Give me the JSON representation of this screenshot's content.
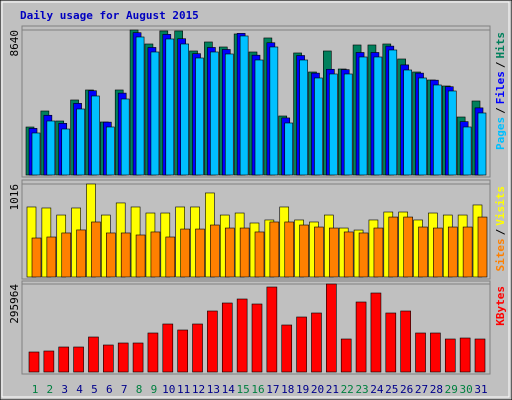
{
  "title": "Daily usage for August 2015",
  "legend_separator": "/",
  "x_label_colors": [
    "#008040",
    "#008040",
    "#00008B",
    "#00008B",
    "#00008B",
    "#00008B",
    "#00008B",
    "#008040",
    "#008040",
    "#00008B",
    "#00008B",
    "#00008B",
    "#00008B",
    "#00008B",
    "#008040",
    "#008040",
    "#00008B",
    "#00008B",
    "#00008B",
    "#00008B",
    "#00008B",
    "#008040",
    "#008040",
    "#00008B",
    "#00008B",
    "#00008B",
    "#00008B",
    "#00008B",
    "#008040",
    "#008040",
    "#00008B"
  ],
  "chart_data": [
    {
      "type": "bar",
      "ylim": [
        0,
        8640
      ],
      "yticks": [
        8640
      ],
      "series": [
        {
          "name": "Hits",
          "color": "#00805C",
          "values": [
            2860,
            3814,
            3218,
            4470,
            5066,
            3159,
            5066,
            8640,
            7807,
            8582,
            8582,
            7390,
            7926,
            7628,
            8403,
            7330,
            8165,
            3516,
            7271,
            6138,
            7390,
            6317,
            7747,
            7747,
            7807,
            6913,
            6138,
            5662,
            5304,
            3456,
            4410
          ]
        },
        {
          "name": "Files",
          "color": "#0000FF",
          "values": [
            2780,
            3560,
            3080,
            4270,
            5020,
            3150,
            4880,
            8480,
            7600,
            8380,
            8120,
            7230,
            7600,
            7480,
            8440,
            7140,
            7880,
            3400,
            7120,
            6070,
            6300,
            6280,
            7300,
            7300,
            7680,
            6560,
            6070,
            5650,
            5260,
            3180,
            4000
          ]
        },
        {
          "name": "Pages",
          "color": "#00C0FF",
          "values": [
            2503,
            3218,
            2741,
            3933,
            4708,
            2861,
            4529,
            8224,
            7330,
            8105,
            7807,
            6972,
            7330,
            7211,
            8284,
            6853,
            7628,
            3099,
            6853,
            5781,
            6019,
            6019,
            7032,
            7032,
            7449,
            6257,
            5781,
            5364,
            5006,
            2861,
            3695
          ]
        }
      ]
    },
    {
      "type": "bar",
      "ylim": [
        0,
        1016
      ],
      "yticks": [
        1016
      ],
      "series": [
        {
          "name": "Visits",
          "color": "#FFFF00",
          "values": [
            765,
            754,
            677,
            754,
            1016,
            677,
            809,
            765,
            699,
            699,
            765,
            765,
            918,
            677,
            699,
            590,
            623,
            765,
            623,
            601,
            677,
            535,
            513,
            623,
            710,
            710,
            623,
            699,
            677,
            677,
            787
          ]
        },
        {
          "name": "Sites",
          "color": "#FF8000",
          "values": [
            426,
            437,
            481,
            514,
            601,
            481,
            481,
            459,
            492,
            437,
            524,
            524,
            568,
            535,
            535,
            492,
            601,
            601,
            568,
            546,
            535,
            492,
            481,
            535,
            655,
            655,
            546,
            535,
            546,
            546,
            655
          ]
        }
      ]
    },
    {
      "type": "bar",
      "ylim": [
        0,
        295964
      ],
      "yticks": [
        295964
      ],
      "categories": [
        "1",
        "2",
        "3",
        "4",
        "5",
        "6",
        "7",
        "8",
        "9",
        "10",
        "11",
        "12",
        "13",
        "14",
        "15",
        "16",
        "17",
        "18",
        "19",
        "20",
        "21",
        "22",
        "23",
        "24",
        "25",
        "26",
        "27",
        "28",
        "29",
        "30",
        "31"
      ],
      "series": [
        {
          "name": "KBytes",
          "color": "#FF0000",
          "values": [
            67263,
            70626,
            84078,
            84078,
            117709,
            90805,
            97531,
            97531,
            131161,
            161429,
            141251,
            161429,
            205148,
            232053,
            245505,
            228690,
            285862,
            158066,
            184969,
            198422,
            295964,
            110983,
            235416,
            265684,
            198422,
            205148,
            131161,
            131161,
            110983,
            114346,
            110983
          ]
        }
      ]
    }
  ]
}
